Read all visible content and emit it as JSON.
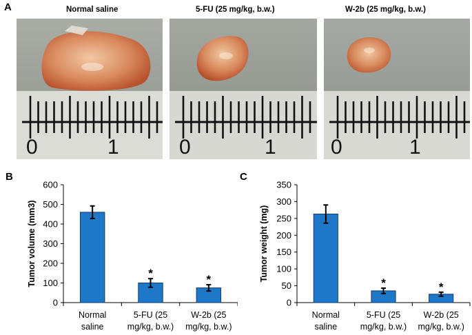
{
  "panel_labels": {
    "a": "A",
    "b": "B",
    "c": "C"
  },
  "photo_titles": [
    "Normal saline",
    "5-FU (25 mg/kg, b.w.)",
    "W-2b (25 mg/kg, b.w.)"
  ],
  "ruler_labels": [
    "0",
    "1"
  ],
  "colors": {
    "bar": "#1f77c8",
    "bar_edge": "#123e6e",
    "tumor": "#d98a5e",
    "tumor_dark": "#b8522e"
  },
  "chart_data": [
    {
      "type": "bar",
      "ylabel": "Tumor volume (mm3)",
      "ylim": [
        0,
        600
      ],
      "yticks": [
        0,
        100,
        200,
        300,
        400,
        500,
        600
      ],
      "categories": [
        [
          "Normal",
          "saline"
        ],
        [
          "5-FU (25",
          "mg/kg, b.w.)"
        ],
        [
          "W-2b (25",
          "mg/kg, b.w.)"
        ]
      ],
      "values": [
        460,
        100,
        75
      ],
      "errors": [
        32,
        22,
        16
      ],
      "significance": [
        "",
        "*",
        "*"
      ]
    },
    {
      "type": "bar",
      "ylabel": "Tumor weight (mg)",
      "ylim": [
        0,
        350
      ],
      "yticks": [
        0,
        50,
        100,
        150,
        200,
        250,
        300,
        350
      ],
      "categories": [
        [
          "Normal",
          "saline"
        ],
        [
          "5-FU (25",
          "mg/kg, b.w.)"
        ],
        [
          "W-2b (25",
          "mg/kg, b.w.)"
        ]
      ],
      "values": [
        263,
        35,
        25
      ],
      "errors": [
        27,
        8,
        6
      ],
      "significance": [
        "",
        "*",
        "*"
      ]
    }
  ]
}
